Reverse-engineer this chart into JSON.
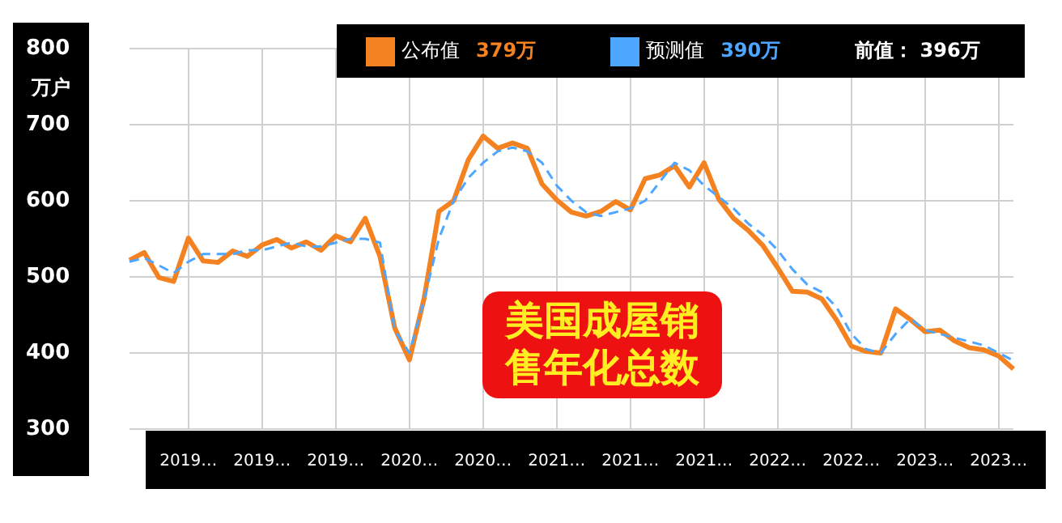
{
  "chart_data": {
    "type": "line",
    "title": "美国成屋销售年化总数",
    "ylabel": "万户",
    "categories": [
      null,
      null,
      null,
      null,
      "2019…",
      null,
      null,
      null,
      null,
      "2019…",
      null,
      null,
      null,
      null,
      "2019…",
      null,
      null,
      null,
      null,
      "2020…",
      null,
      null,
      null,
      null,
      "2020…",
      null,
      null,
      null,
      null,
      "2021…",
      null,
      null,
      null,
      null,
      "2021…",
      null,
      null,
      null,
      null,
      "2021…",
      null,
      null,
      null,
      null,
      "2022…",
      null,
      null,
      null,
      null,
      "2022…",
      null,
      null,
      null,
      null,
      "2023…",
      null,
      null,
      null,
      null,
      "2023…",
      null
    ],
    "series": [
      {
        "name": "公布值",
        "color": "#f58220",
        "line_style": "solid",
        "values": [
          522,
          532,
          499,
          494,
          551,
          521,
          519,
          534,
          527,
          542,
          549,
          538,
          546,
          535,
          554,
          546,
          577,
          527,
          433,
          391,
          472,
          586,
          600,
          654,
          685,
          669,
          676,
          669,
          622,
          601,
          585,
          580,
          586,
          599,
          588,
          629,
          634,
          646,
          618,
          650,
          602,
          577,
          561,
          541,
          512,
          481,
          480,
          471,
          443,
          409,
          402,
          400,
          458,
          444,
          428,
          430,
          416,
          407,
          404,
          396,
          379
        ]
      },
      {
        "name": "预测值",
        "color": "#4da6ff",
        "line_style": "dashed",
        "values": [
          520,
          525,
          515,
          505,
          520,
          530,
          530,
          530,
          535,
          535,
          540,
          545,
          540,
          540,
          545,
          550,
          550,
          545,
          430,
          400,
          470,
          550,
          600,
          630,
          650,
          665,
          670,
          665,
          650,
          620,
          600,
          585,
          580,
          585,
          590,
          600,
          625,
          650,
          640,
          620,
          605,
          590,
          570,
          555,
          535,
          510,
          490,
          480,
          460,
          425,
          405,
          400,
          425,
          445,
          430,
          425,
          420,
          415,
          410,
          400,
          390
        ]
      }
    ],
    "annotations": [
      "379万",
      "390万",
      "前值： 396万"
    ],
    "ylim": [
      300,
      800
    ],
    "yticks": [
      300,
      400,
      500,
      600,
      700,
      800
    ],
    "grid": true,
    "legend": "top",
    "marker": "none"
  }
}
